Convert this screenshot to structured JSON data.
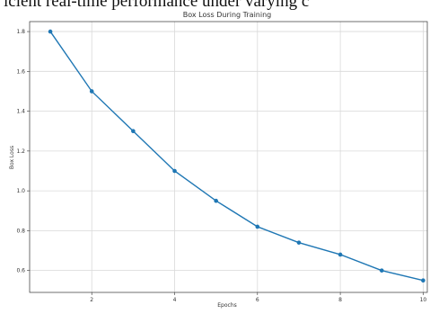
{
  "header_fragment": "icient real-time performance under varying c",
  "chart_data": {
    "type": "line",
    "title": "Box Loss During Training",
    "xlabel": "Epochs",
    "ylabel": "Box Loss",
    "x": [
      1,
      2,
      3,
      4,
      5,
      6,
      7,
      8,
      9,
      10
    ],
    "series": [
      {
        "values": [
          1.8,
          1.5,
          1.3,
          1.1,
          0.95,
          0.82,
          0.74,
          0.68,
          0.6,
          0.55
        ]
      }
    ],
    "xlim": [
      0.5,
      10.1
    ],
    "ylim": [
      0.49,
      1.85
    ],
    "xticks": [
      2,
      4,
      6,
      8,
      10
    ],
    "yticks": [
      0.6,
      0.8,
      1.0,
      1.2,
      1.4,
      1.6,
      1.8
    ],
    "xtick_labels": [
      "2",
      "4",
      "6",
      "8",
      "10"
    ],
    "ytick_labels": [
      "0.6",
      "0.8",
      "1.0",
      "1.2",
      "1.4",
      "1.6",
      "1.8"
    ],
    "grid": true,
    "color": "#1f77b4"
  }
}
